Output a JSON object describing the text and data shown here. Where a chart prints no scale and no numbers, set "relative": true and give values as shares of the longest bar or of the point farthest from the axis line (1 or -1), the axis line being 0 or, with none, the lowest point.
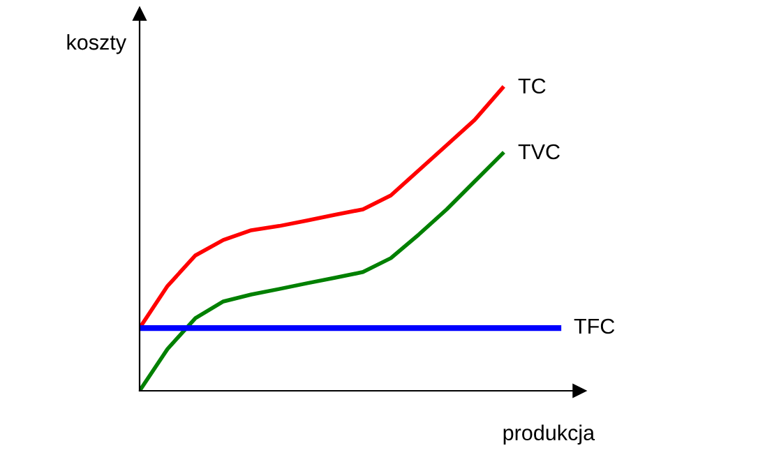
{
  "chart_data": {
    "type": "line",
    "relative": true,
    "xlabel": "produkcja",
    "ylabel": "koszty",
    "categories": [
      null,
      null,
      null,
      null,
      null,
      null,
      null,
      null,
      null,
      null,
      null,
      null,
      null,
      null,
      null,
      null
    ],
    "series": [
      {
        "name": "TC",
        "color": "#ff0000",
        "values": [
          0.207,
          0.346,
          0.447,
          0.498,
          0.53,
          0.544,
          0.562,
          0.581,
          0.599,
          0.645,
          0.728,
          0.811,
          0.894,
          1,
          null,
          null
        ]
      },
      {
        "name": "TVC",
        "color": "#008000",
        "values": [
          0,
          0.138,
          0.24,
          0.295,
          0.318,
          0.336,
          0.355,
          0.373,
          0.392,
          0.438,
          0.516,
          0.599,
          0.691,
          0.783,
          null,
          null
        ]
      },
      {
        "name": "TFC",
        "color": "#0000ff",
        "values": [
          0.207,
          0.207,
          0.207,
          0.207,
          0.207,
          0.207,
          0.207,
          0.207,
          0.207,
          0.207,
          0.207,
          0.207,
          0.207,
          0.207,
          0.207,
          0.207
        ]
      }
    ],
    "grid": false,
    "legend": false,
    "marker": "none",
    "line_style": "solid"
  }
}
